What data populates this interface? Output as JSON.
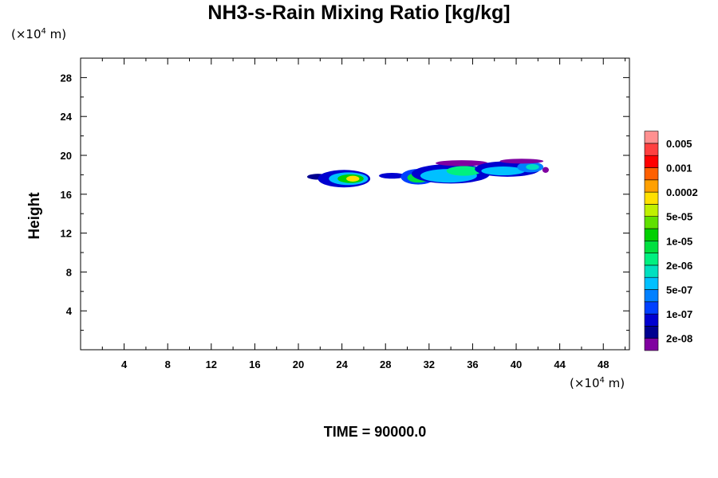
{
  "chart_data": {
    "type": "heatmap",
    "title": "NH3-s-Rain Mixing Ratio [kg/kg]",
    "ylabel": "Height",
    "x_unit_left": "(×10",
    "x_unit_exp": "4",
    "x_unit_right": " m)",
    "y_unit_left": "(×10",
    "y_unit_exp": "4",
    "y_unit_right": " m)",
    "xlim": [
      0,
      50.4
    ],
    "ylim": [
      0,
      30
    ],
    "x_ticks": [
      "4",
      "8",
      "12",
      "16",
      "20",
      "24",
      "28",
      "32",
      "36",
      "40",
      "44",
      "48"
    ],
    "y_ticks": [
      "4",
      "8",
      "12",
      "16",
      "20",
      "24",
      "28"
    ],
    "colorbar": {
      "colors": [
        "#8000a0",
        "#000090",
        "#0000d0",
        "#0040ff",
        "#0080ff",
        "#00c0ff",
        "#00e0c0",
        "#00f080",
        "#00e040",
        "#00d000",
        "#60e000",
        "#c0f000",
        "#ffe000",
        "#ffa000",
        "#ff6000",
        "#ff0000",
        "#ff4040",
        "#ff9090"
      ],
      "labels": [
        "2e-08",
        "1e-07",
        "5e-07",
        "2e-06",
        "1e-05",
        "5e-05",
        "0.0002",
        "0.001",
        "0.005"
      ]
    },
    "features": [
      {
        "xc": 21.8,
        "yc": 17.8,
        "rx": 1.0,
        "ry": 0.3,
        "level": 1
      },
      {
        "xc": 24.2,
        "yc": 17.6,
        "rx": 2.4,
        "ry": 0.9,
        "level": 2
      },
      {
        "xc": 24.6,
        "yc": 17.6,
        "rx": 1.8,
        "ry": 0.65,
        "level": 5
      },
      {
        "xc": 24.8,
        "yc": 17.6,
        "rx": 1.2,
        "ry": 0.45,
        "level": 9
      },
      {
        "xc": 25.0,
        "yc": 17.6,
        "rx": 0.6,
        "ry": 0.3,
        "level": 12
      },
      {
        "xc": 28.6,
        "yc": 17.9,
        "rx": 1.2,
        "ry": 0.3,
        "level": 2
      },
      {
        "xc": 31.0,
        "yc": 17.8,
        "rx": 1.6,
        "ry": 0.8,
        "level": 3
      },
      {
        "xc": 31.0,
        "yc": 17.7,
        "rx": 1.0,
        "ry": 0.5,
        "level": 8
      },
      {
        "xc": 34.0,
        "yc": 18.1,
        "rx": 3.6,
        "ry": 1.0,
        "level": 2
      },
      {
        "xc": 33.8,
        "yc": 17.9,
        "rx": 2.6,
        "ry": 0.7,
        "level": 5
      },
      {
        "xc": 35.2,
        "yc": 18.4,
        "rx": 1.6,
        "ry": 0.5,
        "level": 7
      },
      {
        "xc": 35.0,
        "yc": 19.2,
        "rx": 2.4,
        "ry": 0.3,
        "level": 0
      },
      {
        "xc": 39.2,
        "yc": 18.6,
        "rx": 3.0,
        "ry": 0.8,
        "level": 2
      },
      {
        "xc": 38.8,
        "yc": 18.4,
        "rx": 2.0,
        "ry": 0.45,
        "level": 5
      },
      {
        "xc": 41.3,
        "yc": 18.8,
        "rx": 1.2,
        "ry": 0.55,
        "level": 4
      },
      {
        "xc": 41.5,
        "yc": 18.8,
        "rx": 0.6,
        "ry": 0.3,
        "level": 6
      },
      {
        "xc": 40.5,
        "yc": 19.4,
        "rx": 2.0,
        "ry": 0.25,
        "level": 0
      },
      {
        "xc": 42.7,
        "yc": 18.5,
        "rx": 0.3,
        "ry": 0.3,
        "level": 0
      }
    ]
  },
  "footer": {
    "time_label": "TIME = 90000.0"
  }
}
